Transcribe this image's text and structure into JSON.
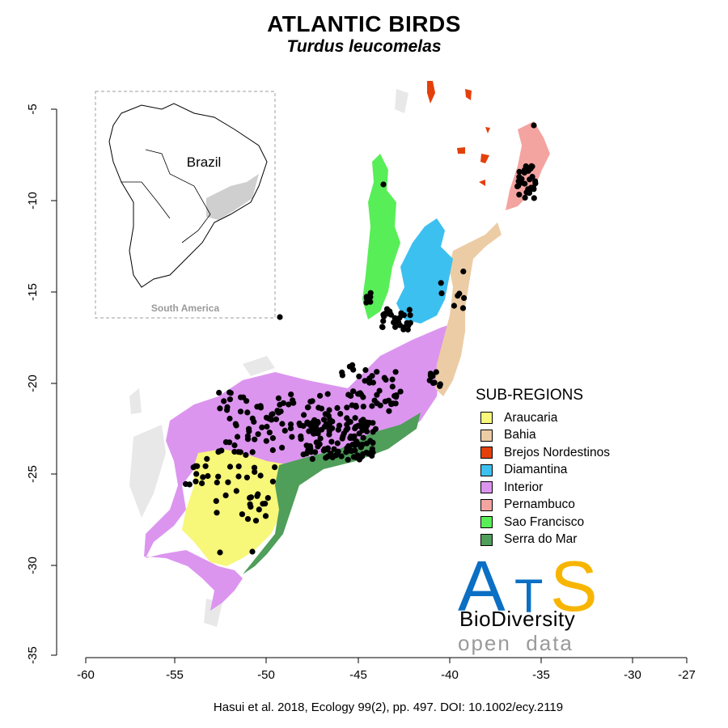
{
  "title": "ATLANTIC BIRDS",
  "subtitle": "Turdus leucomelas",
  "citation": "Hasui et al. 2018, Ecology 99(2), pp. 497. DOI: 10.1002/ecy.2119",
  "inset": {
    "country_label": "Brazil",
    "continent_label": "South America"
  },
  "axes": {
    "x_ticks": [
      "-60",
      "-55",
      "-50",
      "-45",
      "-40",
      "-35",
      "-30",
      "-27"
    ],
    "y_ticks": [
      "-5",
      "-10",
      "-15",
      "-20",
      "-25",
      "-30",
      "-35"
    ]
  },
  "legend": {
    "title": "SUB-REGIONS",
    "items": [
      {
        "label": "Araucaria",
        "color": "#f7f77a"
      },
      {
        "label": "Bahia",
        "color": "#eccca5"
      },
      {
        "label": "Brejos Nordestinos",
        "color": "#e3400c"
      },
      {
        "label": "Diamantina",
        "color": "#3cc0f0"
      },
      {
        "label": "Interior",
        "color": "#dc95ef"
      },
      {
        "label": "Pernambuco",
        "color": "#f4a4a0"
      },
      {
        "label": "Sao Francisco",
        "color": "#58ee58"
      },
      {
        "label": "Serra do Mar",
        "color": "#4f9e5a"
      }
    ]
  },
  "logo": {
    "a": "A",
    "t": "T",
    "s": "S",
    "biodiversity": "BioDiversity",
    "open_data": "open  data"
  },
  "records_color": "#000000"
}
